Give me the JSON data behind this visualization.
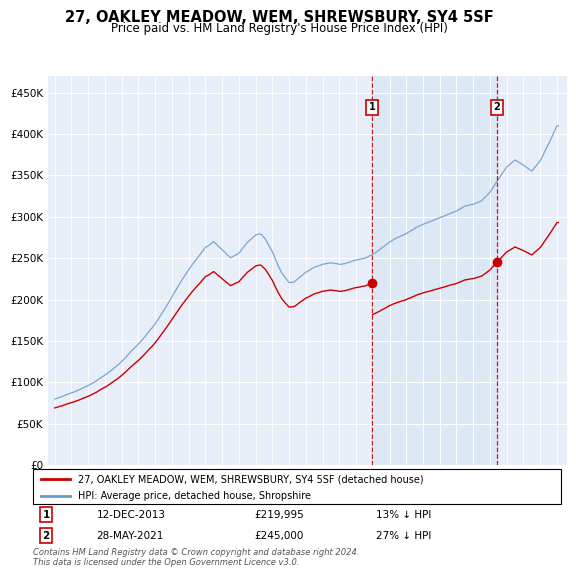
{
  "title": "27, OAKLEY MEADOW, WEM, SHREWSBURY, SY4 5SF",
  "subtitle": "Price paid vs. HM Land Registry's House Price Index (HPI)",
  "legend_line1": "27, OAKLEY MEADOW, WEM, SHREWSBURY, SY4 5SF (detached house)",
  "legend_line2": "HPI: Average price, detached house, Shropshire",
  "footnote": "Contains HM Land Registry data © Crown copyright and database right 2024.\nThis data is licensed under the Open Government Licence v3.0.",
  "annotation1_date": "12-DEC-2013",
  "annotation1_price": "£219,995",
  "annotation1_hpi": "13% ↓ HPI",
  "annotation2_date": "28-MAY-2021",
  "annotation2_price": "£245,000",
  "annotation2_hpi": "27% ↓ HPI",
  "property_color": "#cc0000",
  "hpi_color": "#6699cc",
  "shade_color": "#dce8f5",
  "sale1_x": 2013.958,
  "sale1_y": 219995,
  "sale2_x": 2021.413,
  "sale2_y": 245000,
  "ylim": [
    0,
    470000
  ],
  "yticks": [
    0,
    50000,
    100000,
    150000,
    200000,
    250000,
    300000,
    350000,
    400000,
    450000
  ],
  "ytick_labels": [
    "£0",
    "£50K",
    "£100K",
    "£150K",
    "£200K",
    "£250K",
    "£300K",
    "£350K",
    "£400K",
    "£450K"
  ],
  "xlim_left": 1994.6,
  "xlim_right": 2025.6
}
